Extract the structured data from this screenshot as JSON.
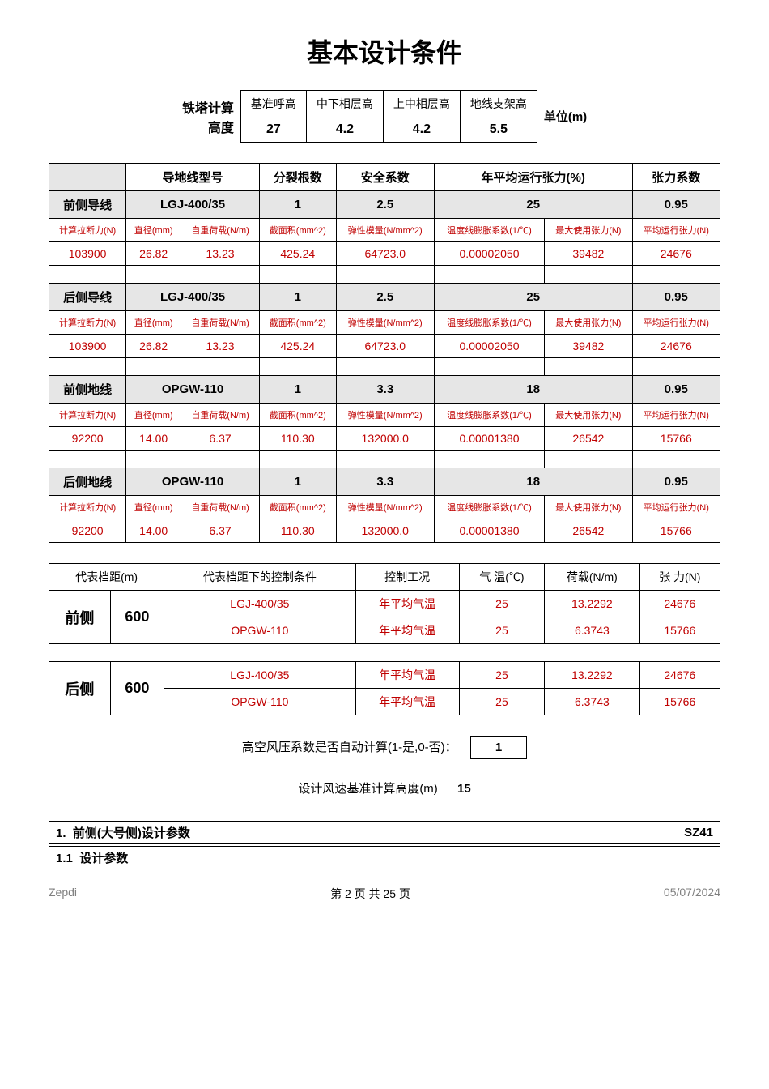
{
  "title": "基本设计条件",
  "top_table": {
    "left_label_l1": "铁塔计算",
    "left_label_l2": "高度",
    "headers": [
      "基准呼高",
      "中下相层高",
      "上中相层高",
      "地线支架高"
    ],
    "values": [
      "27",
      "4.2",
      "4.2",
      "5.5"
    ],
    "unit_label": "单位(m)"
  },
  "main_table": {
    "top_headers": [
      "导地线型号",
      "分裂根数",
      "安全系数",
      "年平均运行张力(%)",
      "张力系数"
    ],
    "sections": [
      {
        "label": "前侧导线",
        "model": "LGJ-400/35",
        "split": "1",
        "safety": "2.5",
        "annual_pct": "25",
        "coef": "0.95",
        "sub": [
          "计算拉断力(N)",
          "直径(mm)",
          "自重荷载(N/m)",
          "截面积(mm^2)",
          "弹性模量(N/mm^2)",
          "温度线膨胀系数(1/℃)",
          "最大使用张力(N)",
          "平均运行张力(N)"
        ],
        "val": [
          "103900",
          "26.82",
          "13.23",
          "425.24",
          "64723.0",
          "0.00002050",
          "39482",
          "24676"
        ]
      },
      {
        "label": "后侧导线",
        "model": "LGJ-400/35",
        "split": "1",
        "safety": "2.5",
        "annual_pct": "25",
        "coef": "0.95",
        "sub": [
          "计算拉断力(N)",
          "直径(mm)",
          "自重荷载(N/m)",
          "截面积(mm^2)",
          "弹性模量(N/mm^2)",
          "温度线膨胀系数(1/℃)",
          "最大使用张力(N)",
          "平均运行张力(N)"
        ],
        "val": [
          "103900",
          "26.82",
          "13.23",
          "425.24",
          "64723.0",
          "0.00002050",
          "39482",
          "24676"
        ]
      },
      {
        "label": "前侧地线",
        "model": "OPGW-110",
        "split": "1",
        "safety": "3.3",
        "annual_pct": "18",
        "coef": "0.95",
        "sub": [
          "计算拉断力(N)",
          "直径(mm)",
          "自重荷载(N/m)",
          "截面积(mm^2)",
          "弹性模量(N/mm^2)",
          "温度线膨胀系数(1/℃)",
          "最大使用张力(N)",
          "平均运行张力(N)"
        ],
        "val": [
          "92200",
          "14.00",
          "6.37",
          "110.30",
          "132000.0",
          "0.00001380",
          "26542",
          "15766"
        ]
      },
      {
        "label": "后侧地线",
        "model": "OPGW-110",
        "split": "1",
        "safety": "3.3",
        "annual_pct": "18",
        "coef": "0.95",
        "sub": [
          "计算拉断力(N)",
          "直径(mm)",
          "自重荷载(N/m)",
          "截面积(mm^2)",
          "弹性模量(N/mm^2)",
          "温度线膨胀系数(1/℃)",
          "最大使用张力(N)",
          "平均运行张力(N)"
        ],
        "val": [
          "92200",
          "14.00",
          "6.37",
          "110.30",
          "132000.0",
          "0.00001380",
          "26542",
          "15766"
        ]
      }
    ]
  },
  "span_table": {
    "headers": [
      "代表档距(m)",
      "代表档距下的控制条件",
      "控制工况",
      "气 温(℃)",
      "荷载(N/m)",
      "张 力(N)"
    ],
    "groups": [
      {
        "side": "前侧",
        "span": "600",
        "rows": [
          [
            "LGJ-400/35",
            "年平均气温",
            "25",
            "13.2292",
            "24676"
          ],
          [
            "OPGW-110",
            "年平均气温",
            "25",
            "6.3743",
            "15766"
          ]
        ]
      },
      {
        "side": "后侧",
        "span": "600",
        "rows": [
          [
            "LGJ-400/35",
            "年平均气温",
            "25",
            "13.2292",
            "24676"
          ],
          [
            "OPGW-110",
            "年平均气温",
            "25",
            "6.3743",
            "15766"
          ]
        ]
      }
    ]
  },
  "wind_auto": {
    "label": "高空风压系数是否自动计算(1-是,0-否)：",
    "value": "1"
  },
  "wind_height": {
    "label": "设计风速基准计算高度(m)",
    "value": "15"
  },
  "section1": {
    "num": "1.",
    "title": "前侧(大号侧)设计参数",
    "code": "SZ41"
  },
  "section11": {
    "num": "1.1",
    "title": "设计参数"
  },
  "footer": {
    "left": "Zepdi",
    "center": "第 2 页 共 25 页",
    "right": "05/07/2024"
  }
}
